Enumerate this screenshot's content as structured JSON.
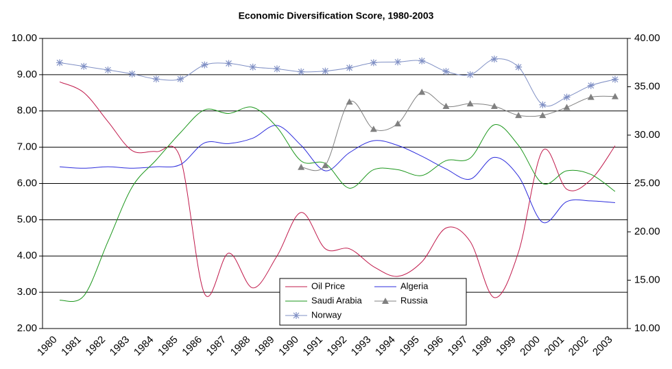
{
  "chart_data": {
    "type": "line",
    "title": "Economic Diversification Score, 1980-2003",
    "categories": [
      "1980",
      "1981",
      "1982",
      "1983",
      "1984",
      "1985",
      "1986",
      "1987",
      "1988",
      "1989",
      "1990",
      "1991",
      "1992",
      "1993",
      "1994",
      "1995",
      "1996",
      "1997",
      "1998",
      "1999",
      "2000",
      "2001",
      "2002",
      "2003"
    ],
    "series": [
      {
        "name": "Oil Price",
        "color": "#c0184a",
        "axis": "y2",
        "values": [
          35.5,
          34.4,
          31.4,
          28.4,
          28.3,
          27.6,
          13.6,
          17.8,
          14.2,
          17.5,
          22.0,
          18.25,
          18.25,
          16.4,
          15.4,
          16.9,
          20.4,
          19.0,
          13.2,
          17.9,
          28.4,
          24.4,
          25.4,
          28.9
        ]
      },
      {
        "name": "Algeria",
        "color": "#2b2bdc",
        "values": [
          6.46,
          6.42,
          6.46,
          6.42,
          6.46,
          6.52,
          7.12,
          7.1,
          7.25,
          7.6,
          7.05,
          6.35,
          6.85,
          7.18,
          7.05,
          6.75,
          6.4,
          6.12,
          6.72,
          6.2,
          4.93,
          5.5,
          5.52,
          5.47
        ]
      },
      {
        "name": "Saudi Arabia",
        "color": "#1a961a",
        "values": [
          2.78,
          2.9,
          4.4,
          5.9,
          6.65,
          7.4,
          8.03,
          7.93,
          8.1,
          7.55,
          6.62,
          6.55,
          5.87,
          6.38,
          6.38,
          6.22,
          6.63,
          6.7,
          7.62,
          7.05,
          6.0,
          6.35,
          6.25,
          5.78
        ]
      },
      {
        "name": "Russia",
        "color": "#808080",
        "marker": "triangle",
        "values": [
          null,
          null,
          null,
          null,
          null,
          null,
          null,
          null,
          null,
          null,
          6.45,
          6.5,
          8.25,
          7.5,
          7.65,
          8.52,
          8.13,
          8.2,
          8.13,
          7.88,
          7.88,
          8.1,
          8.38,
          8.4
        ]
      },
      {
        "name": "Norway",
        "color": "#7f8fc4",
        "marker": "star",
        "values": [
          9.33,
          9.23,
          9.13,
          9.02,
          8.88,
          8.88,
          9.27,
          9.31,
          9.21,
          9.16,
          9.08,
          9.1,
          9.19,
          9.33,
          9.35,
          9.38,
          9.09,
          9.0,
          9.43,
          9.21,
          8.17,
          8.38,
          8.7,
          8.87
        ]
      }
    ],
    "ylim": [
      2,
      10
    ],
    "yticks": [
      {
        "value": 2,
        "label": "2.00"
      },
      {
        "value": 3,
        "label": "3.00"
      },
      {
        "value": 4,
        "label": "4.00"
      },
      {
        "value": 5,
        "label": "5.00"
      },
      {
        "value": 6,
        "label": "6.00"
      },
      {
        "value": 7,
        "label": "7.00"
      },
      {
        "value": 8,
        "label": "8.00"
      },
      {
        "value": 9,
        "label": "9.00"
      },
      {
        "value": 10,
        "label": "10.00"
      }
    ],
    "y2lim": [
      10,
      40
    ],
    "y2ticks": [
      {
        "value": 10,
        "label": "10.00"
      },
      {
        "value": 15,
        "label": "15.00"
      },
      {
        "value": 20,
        "label": "20.00"
      },
      {
        "value": 25,
        "label": "25.00"
      },
      {
        "value": 30,
        "label": "30.00"
      },
      {
        "value": 35,
        "label": "35.00"
      },
      {
        "value": 40,
        "label": "40.00"
      }
    ],
    "grid": true,
    "legend": "bottom-center"
  }
}
